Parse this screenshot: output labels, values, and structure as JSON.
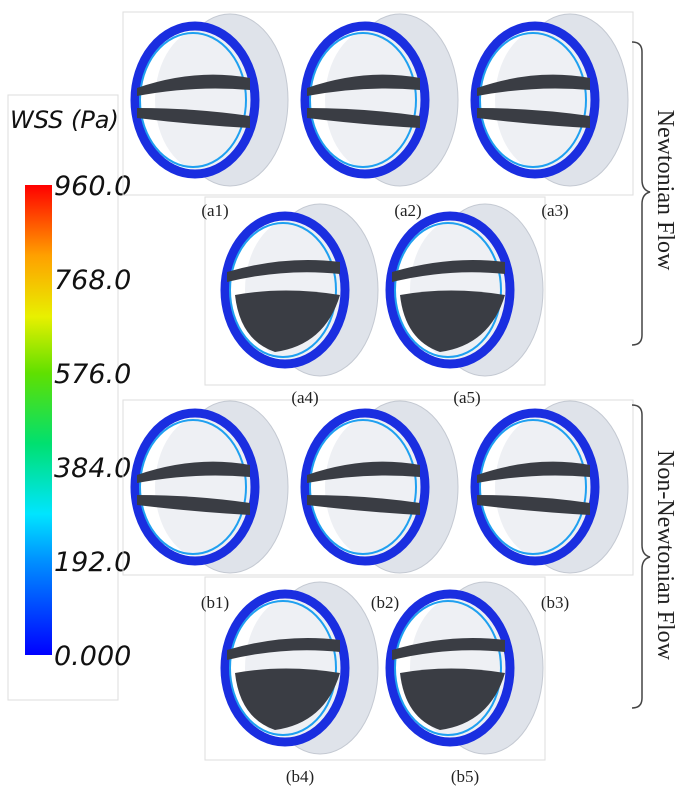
{
  "colorbar": {
    "title": "WSS (Pa)",
    "ticks": [
      "960.0",
      "768.0",
      "576.0",
      "384.0",
      "192.0",
      "0.000"
    ]
  },
  "panels": {
    "a": [
      "(a1)",
      "(a2)",
      "(a3)",
      "(a4)",
      "(a5)"
    ],
    "b": [
      "(b1)",
      "(b2)",
      "(b3)",
      "(b4)",
      "(b5)"
    ]
  },
  "groups": [
    "Newtonian Flow",
    "Non-Newtonian Flow"
  ]
}
